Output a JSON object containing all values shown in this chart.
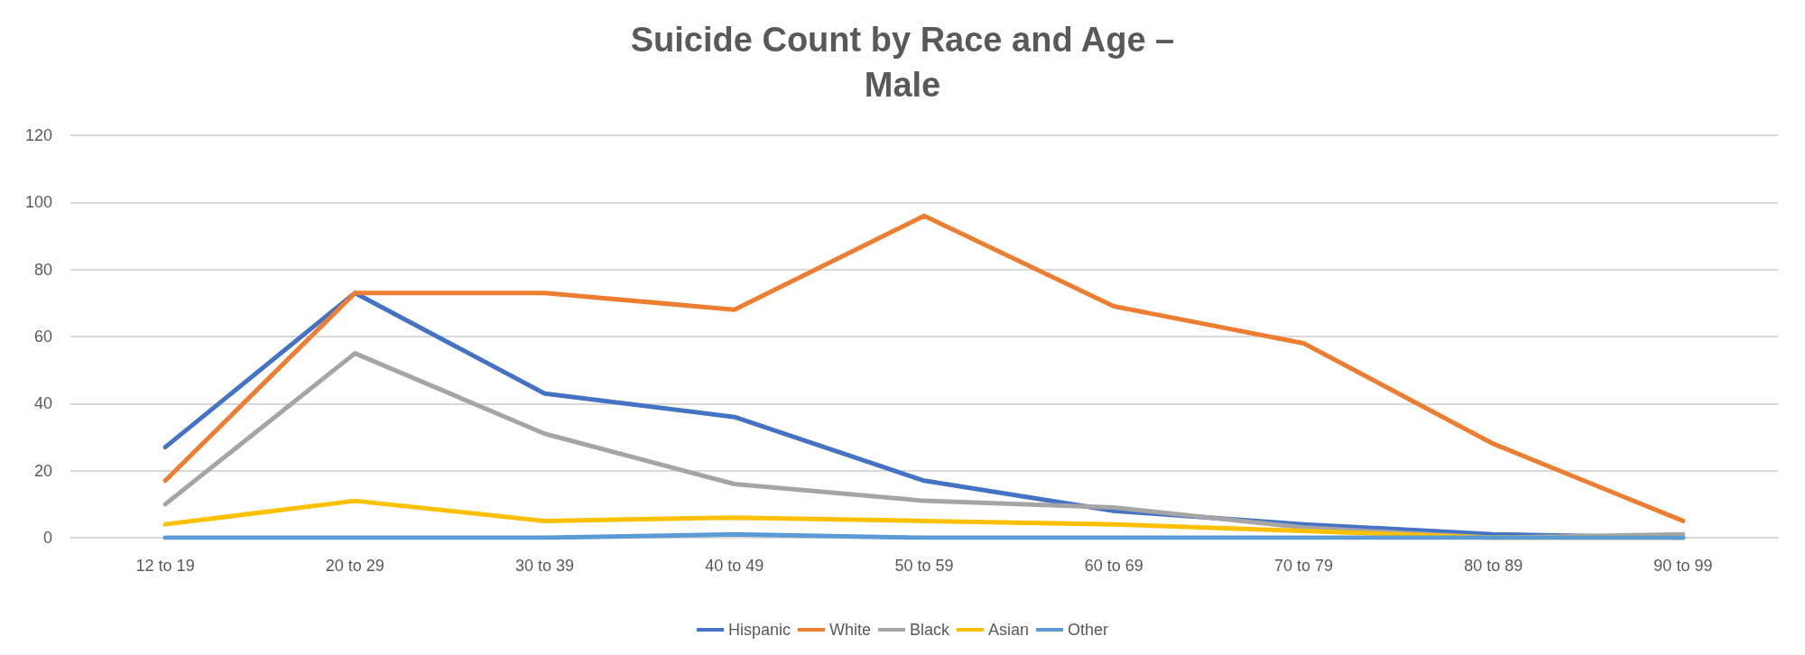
{
  "chart_data": {
    "type": "line",
    "title": "Suicide Count by Race and Age –\nMale",
    "categories": [
      "12 to 19",
      "20 to 29",
      "30 to 39",
      "40 to 49",
      "50 to 59",
      "60 to 69",
      "70 to 79",
      "80 to 89",
      "90 to 99"
    ],
    "series": [
      {
        "name": "Hispanic",
        "color": "#4472c4",
        "values": [
          27,
          73,
          43,
          36,
          17,
          8,
          4,
          1,
          0
        ]
      },
      {
        "name": "White",
        "color": "#ed7d31",
        "values": [
          17,
          73,
          73,
          68,
          96,
          69,
          58,
          28,
          5
        ]
      },
      {
        "name": "Black",
        "color": "#a5a5a5",
        "values": [
          10,
          55,
          31,
          16,
          11,
          9,
          3,
          0,
          1
        ]
      },
      {
        "name": "Asian",
        "color": "#ffc000",
        "values": [
          4,
          11,
          5,
          6,
          5,
          4,
          2,
          0,
          0
        ]
      },
      {
        "name": "Other",
        "color": "#5b9bd5",
        "values": [
          0,
          0,
          0,
          1,
          0,
          0,
          0,
          0,
          0
        ]
      }
    ],
    "ylim": [
      0,
      120
    ],
    "yticks": [
      0,
      20,
      40,
      60,
      80,
      100,
      120
    ],
    "grid": "y",
    "legend": "bottom",
    "marker": "none",
    "line_style": "solid"
  }
}
